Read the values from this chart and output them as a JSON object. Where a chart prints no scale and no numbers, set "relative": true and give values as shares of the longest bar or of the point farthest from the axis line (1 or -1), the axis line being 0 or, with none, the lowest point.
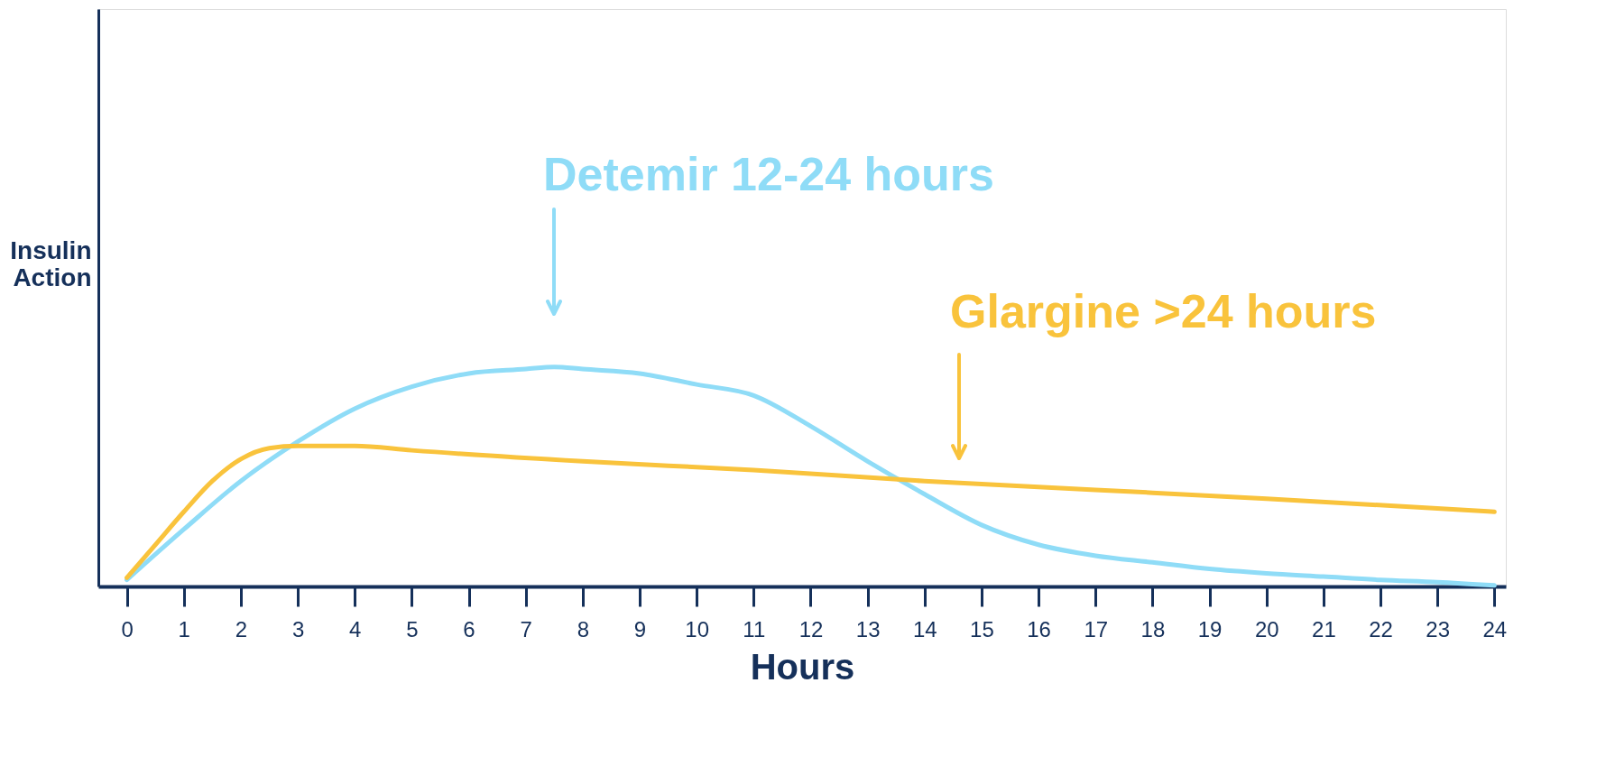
{
  "chart_data": {
    "type": "line",
    "xlabel": "Hours",
    "ylabel": "Insulin Action",
    "relative": true,
    "xlim": [
      -0.5,
      24.2
    ],
    "xticks": [
      0,
      1,
      2,
      3,
      4,
      5,
      6,
      7,
      8,
      9,
      10,
      11,
      12,
      13,
      14,
      15,
      16,
      17,
      18,
      19,
      20,
      21,
      22,
      23,
      24
    ],
    "grid": false,
    "marker": "none",
    "line_style": "solid",
    "series": [
      {
        "color": "#8fdcf7",
        "x": [
          0,
          1,
          2,
          3,
          4,
          5,
          6,
          7,
          7.5,
          8,
          9,
          10,
          11,
          12,
          13,
          14,
          15,
          16,
          17,
          18,
          19,
          20,
          21,
          22,
          23,
          24
        ],
        "values": [
          0.03,
          0.26,
          0.48,
          0.66,
          0.81,
          0.91,
          0.97,
          0.99,
          1,
          0.99,
          0.97,
          0.92,
          0.87,
          0.73,
          0.57,
          0.42,
          0.28,
          0.19,
          0.14,
          0.11,
          0.08,
          0.06,
          0.045,
          0.03,
          0.02,
          0.005
        ]
      },
      {
        "color": "#f9c33c",
        "x": [
          0,
          0.5,
          1,
          1.5,
          2,
          2.5,
          3,
          4,
          5,
          8,
          11,
          14,
          17,
          20,
          24
        ],
        "values": [
          0.04,
          0.19,
          0.34,
          0.48,
          0.58,
          0.63,
          0.64,
          0.64,
          0.62,
          0.57,
          0.53,
          0.48,
          0.44,
          0.4,
          0.34
        ]
      }
    ],
    "annotations": [
      "Detemir 12-24 hours",
      "Glargine >24 hours"
    ]
  }
}
